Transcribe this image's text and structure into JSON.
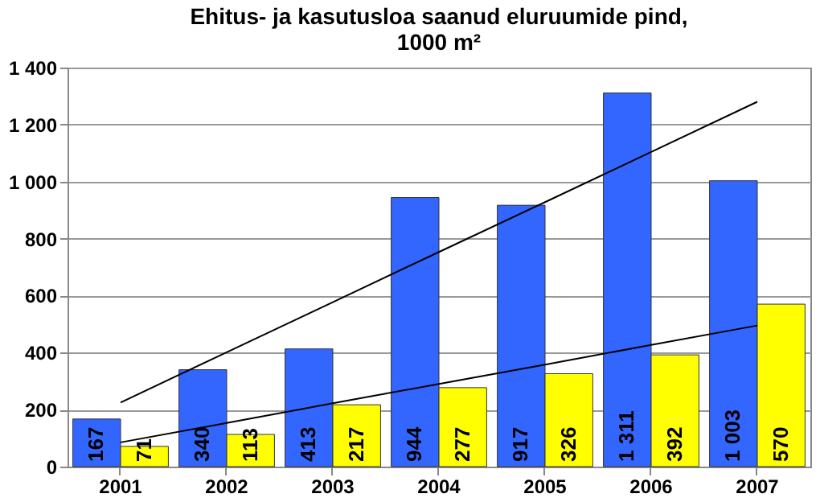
{
  "chart_data": {
    "type": "bar",
    "title": "Ehitus- ja kasutusloa saanud eluruumide pind, 1000 m²",
    "categories": [
      "2001",
      "2002",
      "2003",
      "2004",
      "2005",
      "2006",
      "2007"
    ],
    "series": [
      {
        "color": "#3366ff",
        "values": [
          167,
          340,
          413,
          944,
          917,
          1311,
          1003
        ],
        "value_labels": [
          "167",
          "340",
          "413",
          "944",
          "917",
          "1 311",
          "1 003"
        ]
      },
      {
        "color": "#ffff00",
        "values": [
          71,
          113,
          217,
          277,
          326,
          392,
          570
        ],
        "value_labels": [
          "71",
          "113",
          "217",
          "277",
          "326",
          "392",
          "570"
        ]
      },
      {
        "type": "line",
        "values": [
          225,
          401,
          577,
          753,
          928,
          1104,
          1280
        ],
        "color": "#000000"
      },
      {
        "type": "line",
        "values": [
          85,
          153,
          222,
          290,
          358,
          427,
          495
        ],
        "color": "#000000"
      }
    ],
    "ylim": [
      0,
      1400
    ],
    "yticks": [
      0,
      200,
      400,
      600,
      800,
      {
        "value": 1000,
        "label": "1 000"
      },
      {
        "value": 1200,
        "label": "1 200"
      },
      {
        "value": 1400,
        "label": "1 400"
      }
    ],
    "grid": "y",
    "legend": false
  }
}
